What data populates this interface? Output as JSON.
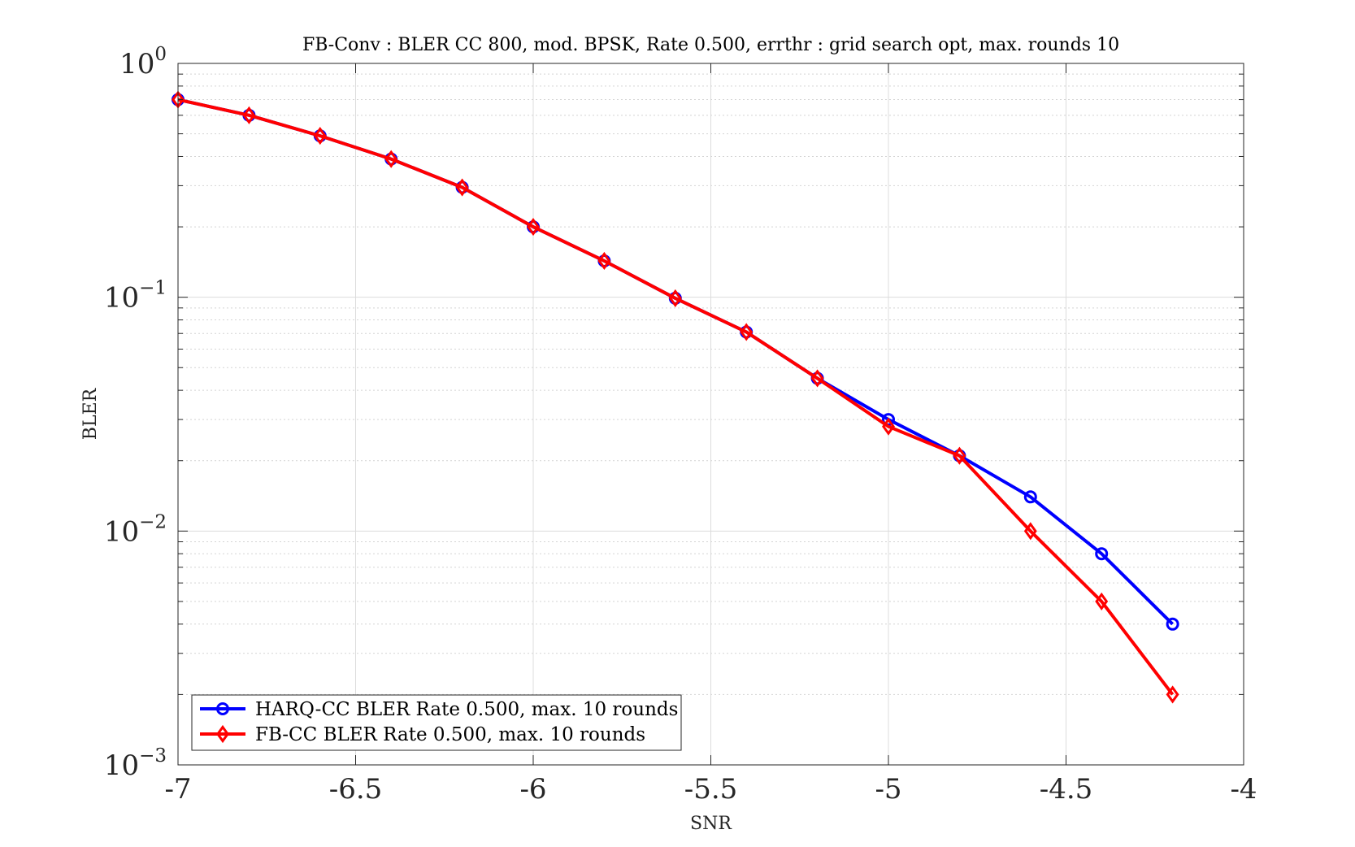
{
  "chart_data": {
    "type": "line",
    "title": "FB-Conv : BLER CC 800, mod. BPSK, Rate 0.500, errthr : grid search opt, max. rounds 10",
    "xlabel": "SNR",
    "ylabel": "BLER",
    "xlim": [
      -7,
      -4
    ],
    "ylim": [
      0.001,
      1
    ],
    "yscale": "log",
    "grid": true,
    "legend_position": "bottom-left",
    "x_ticks": [
      "-7",
      "-6.5",
      "-6",
      "-5.5",
      "-5",
      "-4.5",
      "-4"
    ],
    "y_ticks": [
      {
        "base": "10",
        "exp": "0"
      },
      {
        "base": "10",
        "exp": "−1"
      },
      {
        "base": "10",
        "exp": "−2"
      },
      {
        "base": "10",
        "exp": "−3"
      }
    ],
    "series": [
      {
        "name": "HARQ-CC BLER Rate 0.500, max. 10 rounds",
        "color": "#0000ff",
        "marker": "circle",
        "x": [
          -7,
          -6.8,
          -6.6,
          -6.4,
          -6.2,
          -6,
          -5.8,
          -5.6,
          -5.4,
          -5.2,
          -5,
          -4.8,
          -4.6,
          -4.4,
          -4.2
        ],
        "y": [
          0.7,
          0.6,
          0.49,
          0.39,
          0.295,
          0.2,
          0.143,
          0.099,
          0.071,
          0.045,
          0.03,
          0.021,
          0.014,
          0.008,
          0.004
        ]
      },
      {
        "name": "FB-CC BLER Rate 0.500, max. 10 rounds",
        "color": "#ff0000",
        "marker": "diamond",
        "x": [
          -7,
          -6.8,
          -6.6,
          -6.4,
          -6.2,
          -6,
          -5.8,
          -5.6,
          -5.4,
          -5.2,
          -5,
          -4.8,
          -4.6,
          -4.4,
          -4.2
        ],
        "y": [
          0.7,
          0.6,
          0.49,
          0.39,
          0.295,
          0.2,
          0.143,
          0.099,
          0.071,
          0.045,
          0.028,
          0.021,
          0.01,
          0.005,
          0.002
        ]
      }
    ]
  }
}
